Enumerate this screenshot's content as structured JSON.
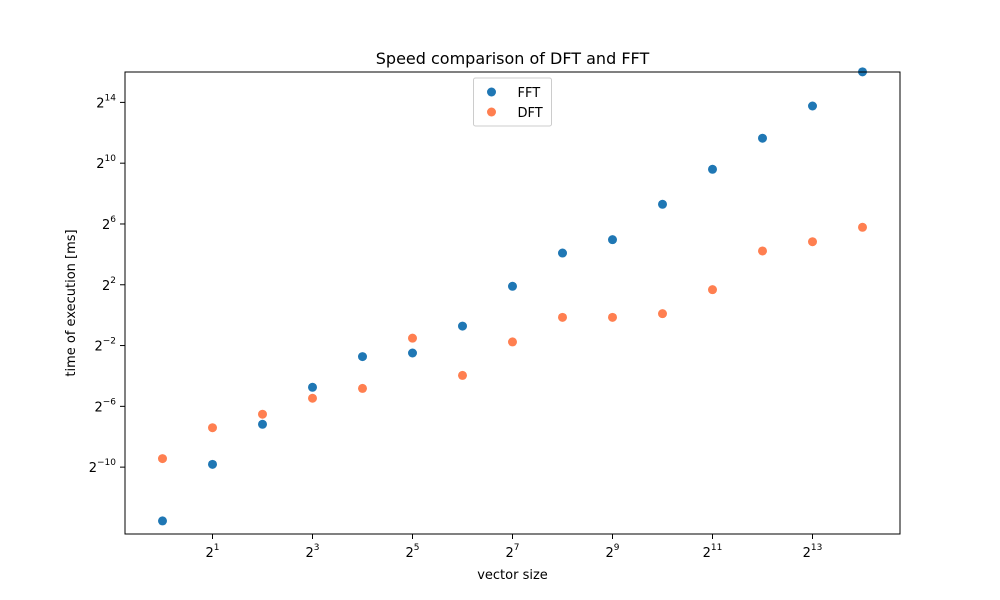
{
  "chart_data": {
    "type": "scatter",
    "title": "Speed comparison of DFT and FFT",
    "xlabel": "vector size",
    "ylabel": "time of execution [ms]",
    "x_scale": "log2",
    "y_scale": "log2",
    "xlim_exp": [
      -0.75,
      14.75
    ],
    "ylim_exp": [
      -14.4,
      16.0
    ],
    "x_ticks": [
      {
        "exp": 1,
        "base": "2",
        "sup": "1"
      },
      {
        "exp": 3,
        "base": "2",
        "sup": "3"
      },
      {
        "exp": 5,
        "base": "2",
        "sup": "5"
      },
      {
        "exp": 7,
        "base": "2",
        "sup": "7"
      },
      {
        "exp": 9,
        "base": "2",
        "sup": "9"
      },
      {
        "exp": 11,
        "base": "2",
        "sup": "11"
      },
      {
        "exp": 13,
        "base": "2",
        "sup": "13"
      }
    ],
    "y_ticks": [
      {
        "exp": -10,
        "base": "2",
        "sup": "−10"
      },
      {
        "exp": -6,
        "base": "2",
        "sup": "−6"
      },
      {
        "exp": -2,
        "base": "2",
        "sup": "−2"
      },
      {
        "exp": 2,
        "base": "2",
        "sup": "2"
      },
      {
        "exp": 6,
        "base": "2",
        "sup": "6"
      },
      {
        "exp": 10,
        "base": "2",
        "sup": "10"
      },
      {
        "exp": 14,
        "base": "2",
        "sup": "14"
      }
    ],
    "x": [
      1,
      2,
      4,
      8,
      16,
      32,
      64,
      128,
      256,
      512,
      1024,
      2048,
      4096,
      8192,
      16384
    ],
    "series": [
      {
        "name": "FFT",
        "color": "#1f77b4",
        "values": [
          8.4e-05,
          0.00111,
          0.0069,
          0.0373,
          0.151,
          0.178,
          0.607,
          3.73,
          17.0,
          31.3,
          157,
          776,
          3200,
          13900,
          66000
        ]
      },
      {
        "name": "DFT",
        "color": "#ff7f50",
        "values": [
          0.00144,
          0.0059,
          0.0109,
          0.0226,
          0.0354,
          0.35,
          0.064,
          0.295,
          0.905,
          0.905,
          1.07,
          3.2,
          18.7,
          28.5,
          55.0
        ]
      }
    ],
    "legend": {
      "position": "upper-center",
      "entries": [
        "FFT",
        "DFT"
      ]
    },
    "grid": false
  }
}
